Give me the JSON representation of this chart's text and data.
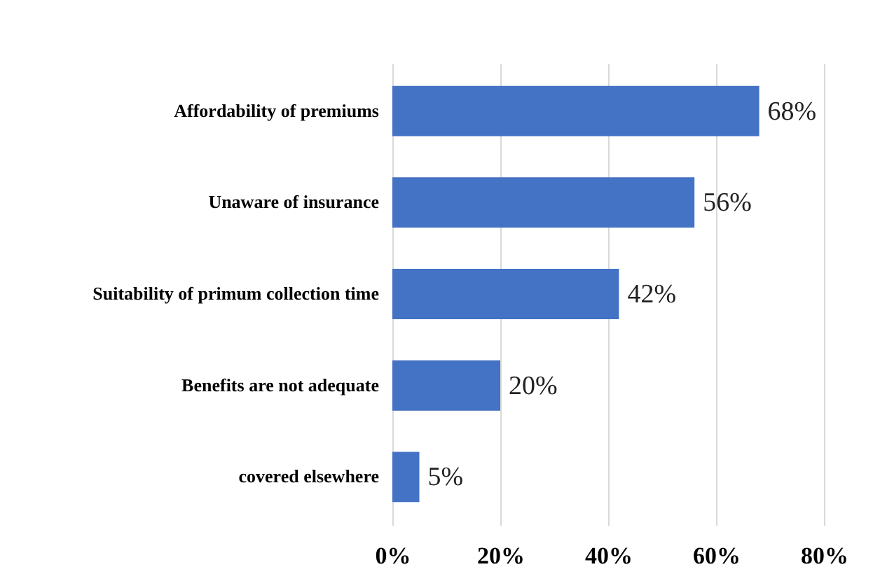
{
  "chart_data": {
    "type": "bar",
    "orientation": "horizontal",
    "categories": [
      "Affordability of premiums",
      "Unaware of insurance",
      "Suitability  of primum collection time",
      "Benefits are not adequate",
      "covered elsewhere"
    ],
    "values": [
      68,
      56,
      42,
      20,
      5
    ],
    "value_labels": [
      "68%",
      "56%",
      "42%",
      "20%",
      "5%"
    ],
    "color": "#4472c4",
    "xlim": [
      0,
      80
    ],
    "xticks": [
      {
        "value": 0,
        "label": "0%"
      },
      {
        "value": 20,
        "label": "20%"
      },
      {
        "value": 40,
        "label": "40%"
      },
      {
        "value": 60,
        "label": "60%"
      },
      {
        "value": 80,
        "label": "80%"
      }
    ],
    "grid": "x"
  }
}
